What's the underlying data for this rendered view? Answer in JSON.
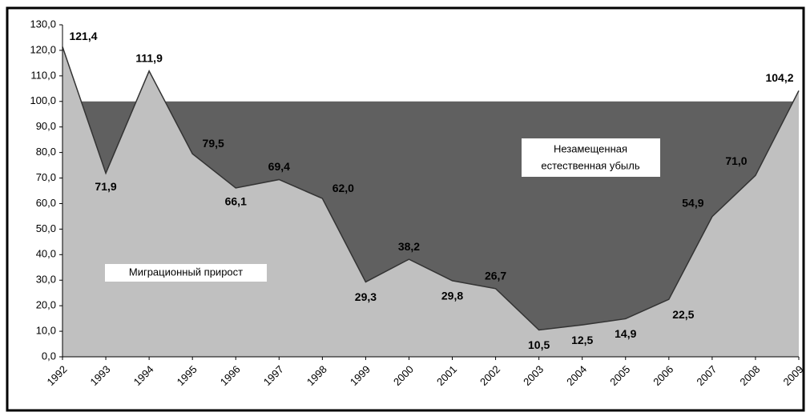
{
  "chart_data": {
    "type": "area",
    "x": [
      1992,
      1993,
      1994,
      1995,
      1996,
      1997,
      1998,
      1999,
      2000,
      2001,
      2002,
      2003,
      2004,
      2005,
      2006,
      2007,
      2008,
      2009
    ],
    "xlim": [
      1992,
      2009
    ],
    "values": [
      121.4,
      71.9,
      111.9,
      79.5,
      66.1,
      69.4,
      62.0,
      29.3,
      38.2,
      29.8,
      26.7,
      10.5,
      12.5,
      14.9,
      22.5,
      54.9,
      71.0,
      104.2
    ],
    "value_labels": [
      "121,4",
      "71,9",
      "111,9",
      "79,5",
      "66,1",
      "69,4",
      "62,0",
      "29,3",
      "38,2",
      "29,8",
      "26,7",
      "10,5",
      "12,5",
      "14,9",
      "22,5",
      "54,9",
      "71,0",
      "104,2"
    ],
    "color": "#c0c0c0",
    "threshold": 100,
    "threshold_color": "#606060",
    "ylim": [
      0,
      130
    ],
    "yticks": [
      {
        "value": 0,
        "label": "0,0"
      },
      {
        "value": 10,
        "label": "10,0"
      },
      {
        "value": 20,
        "label": "20,0"
      },
      {
        "value": 30,
        "label": "30,0"
      },
      {
        "value": 40,
        "label": "40,0"
      },
      {
        "value": 50,
        "label": "50,0"
      },
      {
        "value": 60,
        "label": "60,0"
      },
      {
        "value": 70,
        "label": "70,0"
      },
      {
        "value": 80,
        "label": "80,0"
      },
      {
        "value": 90,
        "label": "90,0"
      },
      {
        "value": 100,
        "label": "100,0"
      },
      {
        "value": 110,
        "label": "110,0"
      },
      {
        "value": 120,
        "label": "120,0"
      },
      {
        "value": 130,
        "label": "130,0"
      }
    ],
    "annotations": [
      "Миграционный прирост",
      "Незамещенная",
      "естественная убыль"
    ]
  }
}
